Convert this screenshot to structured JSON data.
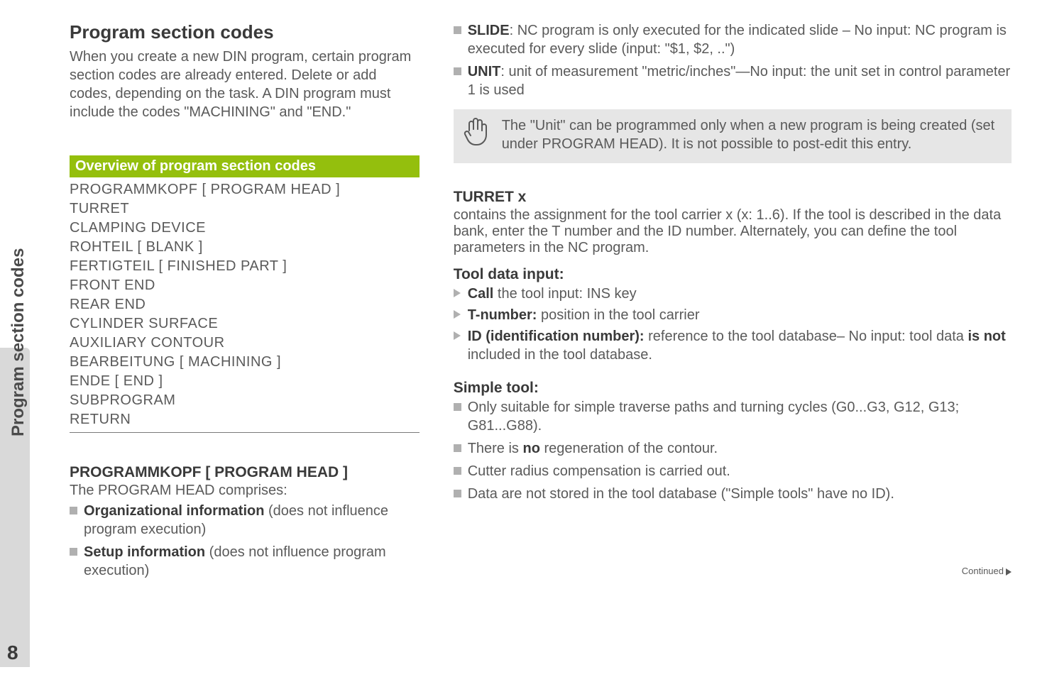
{
  "sidebar": {
    "label": "Program section codes"
  },
  "page_number": "8",
  "left": {
    "title": "Program section codes",
    "intro": "When you create a new DIN program, certain program section codes are already entered. Delete or add codes, depending on the task. A DIN program must include the codes \"MACHINING\" and \"END.\"",
    "overview_header": "Overview of program section codes",
    "codes": [
      "PROGRAMMKOPF [ PROGRAM HEAD ]",
      "TURRET",
      "CLAMPING DEVICE",
      "ROHTEIL [ BLANK ]",
      "FERTIGTEIL [ FINISHED PART ]",
      "FRONT END",
      "REAR END",
      "CYLINDER SURFACE",
      "AUXILIARY CONTOUR",
      "BEARBEITUNG [ MACHINING ]",
      "ENDE [ END ]",
      "SUBPROGRAM",
      "RETURN"
    ],
    "sub_heading": "PROGRAMMKOPF [ PROGRAM HEAD ]",
    "sub_desc": "The PROGRAM HEAD comprises:",
    "bullets": [
      {
        "bold": "Organizational information",
        "rest": " (does not influence program execution)"
      },
      {
        "bold": "Setup information",
        "rest": " (does not influence program execution)"
      }
    ]
  },
  "right": {
    "top_bullets": [
      {
        "bold": "SLIDE",
        "rest": ": NC program is only executed for the indicated slide – No input: NC program is executed for every slide  (input:  \"$1, $2, ..\")"
      },
      {
        "bold": "UNIT",
        "rest": ": unit of measurement \"metric/inches\"—No input: the unit set in control parameter 1 is used"
      }
    ],
    "note": "The \"Unit\" can be programmed only when a new program is being created (set under PROGRAM HEAD). It is not possible to post-edit this entry.",
    "turret_heading": "TURRET x",
    "turret_body": "contains the assignment for the tool carrier x (x: 1..6). If the tool is described in the data bank, enter the T number and the ID number. Alternately, you can define the tool parameters in the NC program.",
    "tool_data_heading": "Tool data input:",
    "tool_data": [
      {
        "bold": "Call",
        "rest": " the tool input: INS key"
      },
      {
        "bold": "T-number:",
        "rest": " position in the tool carrier"
      },
      {
        "bold": "ID (identification number):",
        "rest": " reference to the tool database– No input: tool data ",
        "bold2": "is not",
        "rest2": " included in the tool database."
      }
    ],
    "simple_heading": "Simple tool:",
    "simple_bullets": [
      "Only suitable for simple traverse paths and turning cycles  (G0...G3, G12, G13; G81...G88).",
      "There is |no| regeneration of the contour.",
      "Cutter radius compensation is carried out.",
      "Data are not stored in the tool database (\"Simple tools\" have no ID)."
    ],
    "continued": "Continued"
  }
}
